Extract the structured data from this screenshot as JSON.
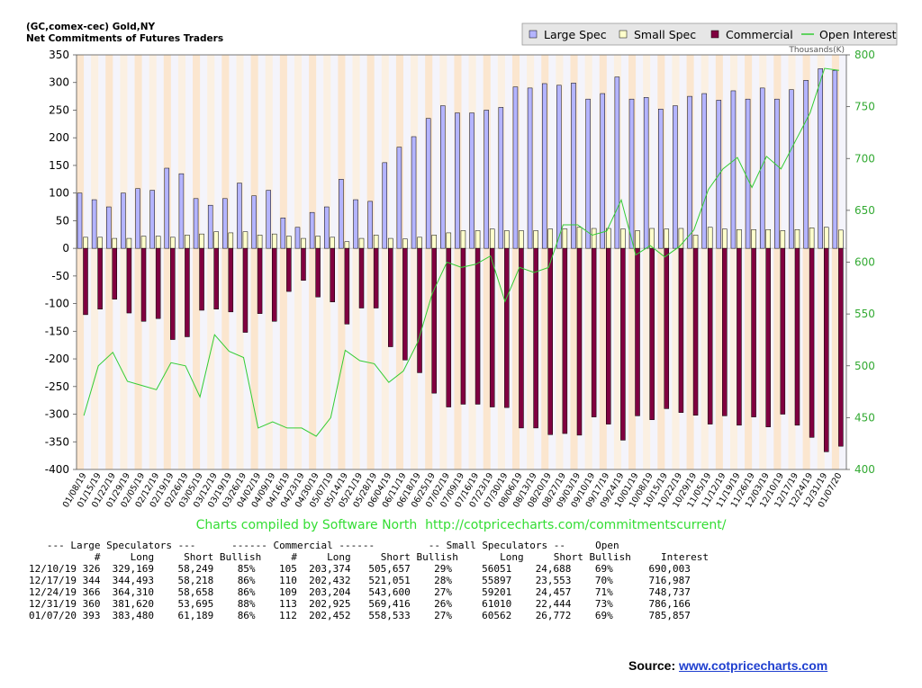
{
  "header": {
    "line1": "(GC,comex-cec) Gold,NY",
    "line2": "Net Commitments of Futures Traders"
  },
  "chart_data": {
    "type": "bar",
    "right_axis_unit": "Thousands(K)",
    "y_left": {
      "min": -400,
      "max": 350,
      "ticks": [
        350,
        300,
        250,
        200,
        150,
        100,
        50,
        0,
        -50,
        -100,
        -150,
        -200,
        -250,
        -300,
        -350,
        -400
      ]
    },
    "y_right": {
      "min": 400,
      "max": 800,
      "ticks": [
        800,
        750,
        700,
        650,
        600,
        550,
        500,
        450,
        400
      ]
    },
    "x_tick_labels": [
      "01/08/19",
      "01/15/19",
      "01/22/19",
      "01/29/19",
      "02/05/19",
      "02/12/19",
      "02/19/19",
      "02/26/19",
      "03/05/19",
      "03/12/19",
      "03/19/19",
      "03/26/19",
      "04/02/19",
      "04/09/19",
      "04/16/19",
      "04/23/19",
      "04/30/19",
      "05/07/19",
      "05/14/19",
      "05/21/19",
      "05/28/19",
      "06/04/19",
      "06/11/19",
      "06/18/19",
      "06/25/19",
      "07/02/19",
      "07/09/19",
      "07/16/19",
      "07/23/19",
      "07/30/19",
      "08/06/19",
      "08/13/19",
      "08/20/19",
      "08/27/19",
      "09/03/19",
      "09/10/19",
      "09/17/19",
      "09/24/19",
      "10/01/19",
      "10/08/19",
      "10/15/19",
      "10/22/19",
      "10/29/19",
      "11/05/19",
      "11/12/19",
      "11/19/19",
      "11/26/19",
      "12/03/19",
      "12/10/19",
      "12/17/19",
      "12/24/19",
      "12/31/19",
      "01/07/20"
    ],
    "series": [
      {
        "name": "Large Spec",
        "color": "#b4b4ff",
        "values": [
          100,
          88,
          75,
          100,
          108,
          105,
          145,
          135,
          90,
          78,
          90,
          118,
          95,
          105,
          55,
          38,
          65,
          75,
          125,
          88,
          85,
          155,
          183,
          202,
          235,
          258,
          245,
          245,
          250,
          255,
          292,
          290,
          298,
          295,
          299,
          270,
          280,
          310,
          270,
          273,
          252,
          258,
          275,
          280,
          268,
          285,
          270,
          290,
          270,
          287,
          304,
          325,
          322
        ]
      },
      {
        "name": "Small Spec",
        "color": "#ffffcc",
        "values": [
          20,
          20,
          18,
          18,
          22,
          22,
          20,
          24,
          26,
          30,
          28,
          30,
          24,
          26,
          22,
          18,
          22,
          20,
          12,
          18,
          24,
          18,
          17,
          20,
          24,
          28,
          32,
          32,
          35,
          32,
          32,
          32,
          35,
          35,
          38,
          36,
          36,
          35,
          32,
          36,
          35,
          36,
          24,
          38,
          35,
          34,
          34,
          34,
          32,
          34,
          37,
          38,
          33
        ]
      },
      {
        "name": "Commercial",
        "color": "#800040",
        "values": [
          -120,
          -110,
          -92,
          -117,
          -132,
          -127,
          -165,
          -160,
          -112,
          -110,
          -115,
          -152,
          -118,
          -132,
          -78,
          -58,
          -88,
          -97,
          -137,
          -108,
          -108,
          -178,
          -202,
          -225,
          -262,
          -287,
          -282,
          -282,
          -287,
          -288,
          -325,
          -325,
          -337,
          -335,
          -338,
          -305,
          -318,
          -347,
          -303,
          -310,
          -290,
          -297,
          -302,
          -318,
          -303,
          -320,
          -305,
          -323,
          -300,
          -320,
          -342,
          -368,
          -358
        ]
      },
      {
        "name": "Open Interest",
        "color": "#33cc33",
        "values": [
          452,
          500,
          513,
          485,
          481,
          477,
          503,
          500,
          470,
          530,
          514,
          508,
          440,
          446,
          440,
          440,
          432,
          450,
          515,
          505,
          502,
          484,
          495,
          523,
          570,
          600,
          595,
          598,
          606,
          562,
          595,
          590,
          595,
          636,
          636,
          626,
          630,
          660,
          607,
          616,
          605,
          615,
          631,
          670,
          690,
          701,
          672,
          702,
          690,
          717,
          744,
          787,
          785
        ]
      }
    ],
    "legend_position": "top-right",
    "grid": "vertical alternating bands"
  },
  "credit": "Charts compiled by Software North  http://cotpricecharts.com/commitmentscurrent/",
  "table": {
    "lines": [
      "   --- Large Speculators ---      ------ Commercial ------         -- Small Speculators --     Open",
      "           #     Long     Short Bullish     #     Long     Short Bullish       Long     Short Bullish     Interest"
    ],
    "rows": [
      [
        "12/10/19",
        "326",
        "329,169",
        "58,249",
        "85%",
        "105",
        "203,374",
        "505,657",
        "29%",
        "56051",
        "24,688",
        "69%",
        "690,003"
      ],
      [
        "12/17/19",
        "344",
        "344,493",
        "58,218",
        "86%",
        "110",
        "202,432",
        "521,051",
        "28%",
        "55897",
        "23,553",
        "70%",
        "716,987"
      ],
      [
        "12/24/19",
        "366",
        "364,310",
        "58,658",
        "86%",
        "109",
        "203,204",
        "543,600",
        "27%",
        "59201",
        "24,457",
        "71%",
        "748,737"
      ],
      [
        "12/31/19",
        "360",
        "381,620",
        "53,695",
        "88%",
        "113",
        "202,925",
        "569,416",
        "26%",
        "61010",
        "22,444",
        "73%",
        "786,166"
      ],
      [
        "01/07/20",
        "393",
        "383,480",
        "61,189",
        "86%",
        "112",
        "202,452",
        "558,533",
        "27%",
        "60562",
        "26,772",
        "69%",
        "785,857"
      ]
    ]
  },
  "source": {
    "label": "Source:",
    "link_text": "www.cotpricecharts.com"
  }
}
